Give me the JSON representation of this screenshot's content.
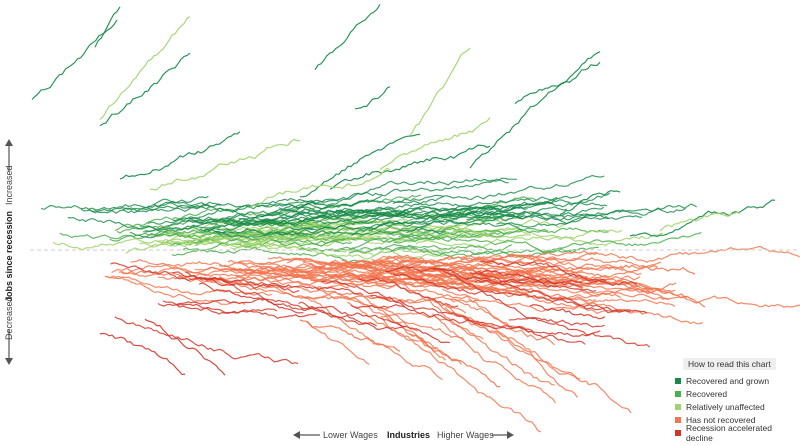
{
  "chart_data": {
    "type": "line",
    "xlabel": "Industries",
    "x_left_label": "Lower Wages",
    "x_right_label": "Higher Wages",
    "ylabel": "Jobs since recession",
    "y_up_label": "Increased",
    "y_down_label": "Decreased",
    "legend_placement": "bottom-right",
    "categories": [
      {
        "key": "grown",
        "label": "Recovered and grown",
        "color": "#17894a"
      },
      {
        "key": "recovered",
        "label": "Recovered",
        "color": "#4caf50"
      },
      {
        "key": "unaffected",
        "label": "Relatively unaffected",
        "color": "#9fd46a"
      },
      {
        "key": "not_recovered",
        "label": "Has not recovered",
        "color": "#f2764f"
      },
      {
        "key": "accelerated",
        "label": "Recession accelerated decline",
        "color": "#d2362a"
      }
    ]
  },
  "legend": {
    "title": "How to read this chart",
    "items": [
      {
        "label": "Recovered and grown",
        "color": "#17894a"
      },
      {
        "label": "Recovered",
        "color": "#4caf50"
      },
      {
        "label": "Relatively unaffected",
        "color": "#9fd46a"
      },
      {
        "label": "Has not recovered",
        "color": "#f2764f"
      },
      {
        "label": "Recession accelerated decline",
        "color": "#d2362a"
      }
    ]
  }
}
